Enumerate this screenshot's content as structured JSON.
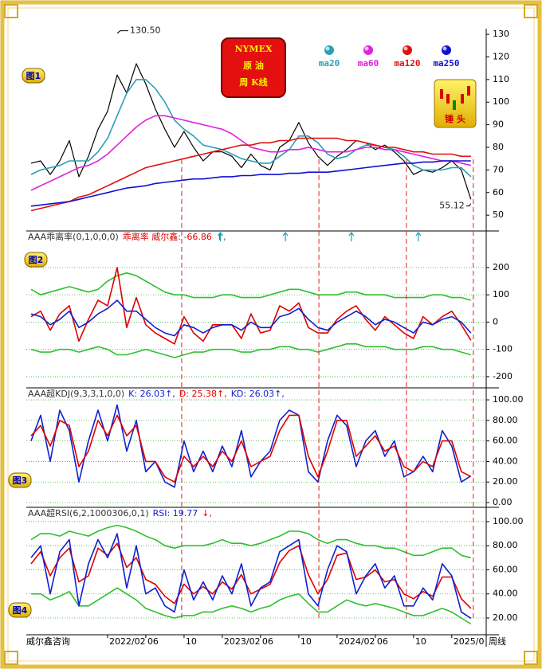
{
  "source": "威尔鑫咨询",
  "x_axis_note": "周线",
  "signal_x": [
    7.75,
    22.1,
    31.25,
    38.25
  ],
  "arrow_x": [
    11.8,
    18.6,
    25.5,
    32.5
  ],
  "chart_data": [
    {
      "type": "line",
      "panel_label": "图1",
      "title_lines": [
        "NYMEX",
        "原 油",
        "周 K线"
      ],
      "icon_label": "锤 头",
      "x": [
        -8,
        -7,
        -6,
        -5,
        -4,
        -3,
        -2,
        -1,
        0,
        1,
        2,
        3,
        4,
        5,
        6,
        7,
        8,
        9,
        10,
        11,
        12,
        13,
        14,
        15,
        16,
        17,
        18,
        19,
        20,
        21,
        22,
        23,
        24,
        25,
        26,
        27,
        28,
        29,
        30,
        31,
        32,
        33,
        34,
        35,
        36,
        37,
        38
      ],
      "xlim": [
        -8.5,
        39.6
      ],
      "ylim": [
        43,
        132.5
      ],
      "yticks": [
        50,
        60,
        70,
        80,
        90,
        100,
        110,
        120,
        130
      ],
      "price": {
        "color": "#000000",
        "values": [
          73,
          74,
          68,
          74,
          83,
          67,
          76,
          88,
          96,
          112,
          104,
          117,
          108,
          97,
          88,
          80,
          87,
          80,
          74,
          78,
          78,
          76,
          71,
          77,
          72,
          70,
          80,
          83,
          91,
          82,
          76,
          72,
          76,
          79,
          83,
          82,
          79,
          81,
          78,
          74,
          68,
          70,
          69,
          71,
          74,
          70,
          57
        ]
      },
      "series": [
        {
          "name": "ma20",
          "color": "#2aa0b4",
          "values": [
            68,
            70,
            71,
            72,
            74,
            74,
            74,
            78,
            84,
            94,
            104,
            110,
            110,
            106,
            100,
            92,
            88,
            85,
            81,
            80,
            79,
            77,
            75,
            74,
            73,
            73,
            76,
            79,
            85,
            85,
            82,
            77,
            75,
            76,
            79,
            81,
            81,
            80,
            79,
            76,
            72,
            70,
            70,
            70,
            71,
            71,
            67
          ]
        },
        {
          "name": "ma60",
          "color": "#e020e0",
          "values": [
            61,
            63,
            65,
            67,
            69,
            71,
            72,
            74,
            77,
            81,
            85,
            89,
            92,
            94,
            94,
            93,
            92,
            91,
            90,
            89,
            88,
            86,
            83,
            80,
            79,
            78,
            78,
            79,
            79,
            80,
            79,
            78,
            78,
            78,
            79,
            80,
            80,
            79,
            79,
            78,
            77,
            76,
            75,
            74,
            74,
            73,
            72
          ]
        },
        {
          "name": "ma120",
          "color": "#e01010",
          "values": [
            52,
            53,
            54,
            55,
            56,
            58,
            59,
            61,
            63,
            65,
            67,
            69,
            71,
            72,
            73,
            74,
            75,
            76,
            77,
            78,
            79,
            80,
            81,
            81,
            82,
            82,
            83,
            83,
            84,
            84,
            84,
            84,
            84,
            83,
            83,
            82,
            81,
            80,
            80,
            79,
            78,
            78,
            77,
            77,
            77,
            76,
            76
          ]
        },
        {
          "name": "ma250",
          "color": "#1010d0",
          "values": [
            54,
            54.5,
            55,
            55.5,
            56,
            57,
            58,
            59,
            60,
            61,
            62,
            62.5,
            63,
            64,
            64.5,
            65,
            65.5,
            66,
            66,
            66.5,
            67,
            67,
            67.5,
            67.5,
            68,
            68,
            68,
            68.5,
            68.5,
            69,
            69,
            69,
            69.5,
            70,
            70.5,
            71,
            71.5,
            72,
            72.5,
            73,
            73,
            73.5,
            73.5,
            74,
            74,
            74,
            74
          ]
        }
      ],
      "annotations": [
        {
          "x": 1,
          "value": 130.5,
          "label": "130.50"
        },
        {
          "x": 38,
          "value": 55.12,
          "label": "55.12"
        }
      ]
    },
    {
      "type": "line",
      "panel_label": "图2",
      "header": "AAA乖离率(0,1,0,0,0)",
      "header_items": [
        {
          "text": "乖离率 威尔鑫: -66.86",
          "color": "#e00000"
        },
        {
          "text": "↑,",
          "color": "#0060d0"
        }
      ],
      "x": [
        -8,
        -7,
        -6,
        -5,
        -4,
        -3,
        -2,
        -1,
        0,
        1,
        2,
        3,
        4,
        5,
        6,
        7,
        8,
        9,
        10,
        11,
        12,
        13,
        14,
        15,
        16,
        17,
        18,
        19,
        20,
        21,
        22,
        23,
        24,
        25,
        26,
        27,
        28,
        29,
        30,
        31,
        32,
        33,
        34,
        35,
        36,
        37,
        38
      ],
      "xlim": [
        -8.5,
        39.6
      ],
      "ylim": [
        -241,
        331
      ],
      "yticks": [
        -200,
        -100,
        0,
        100,
        200
      ],
      "grid": true,
      "series": [
        {
          "color": "#30c030",
          "values": [
            120,
            100,
            110,
            120,
            130,
            120,
            110,
            120,
            150,
            170,
            180,
            170,
            150,
            130,
            110,
            100,
            100,
            90,
            90,
            90,
            100,
            100,
            90,
            90,
            90,
            100,
            110,
            120,
            120,
            110,
            100,
            100,
            100,
            110,
            110,
            100,
            100,
            100,
            90,
            90,
            90,
            90,
            100,
            100,
            90,
            90,
            80
          ]
        },
        {
          "color": "#30c030",
          "values": [
            -100,
            -110,
            -110,
            -100,
            -100,
            -110,
            -100,
            -90,
            -100,
            -120,
            -120,
            -110,
            -100,
            -110,
            -120,
            -130,
            -120,
            -110,
            -110,
            -100,
            -100,
            -100,
            -110,
            -110,
            -100,
            -100,
            -90,
            -90,
            -100,
            -100,
            -110,
            -100,
            -90,
            -80,
            -80,
            -90,
            -90,
            -90,
            -100,
            -100,
            -100,
            -90,
            -90,
            -100,
            -100,
            -110,
            -120
          ]
        },
        {
          "color": "#e00000",
          "values": [
            20,
            40,
            -30,
            30,
            60,
            -70,
            10,
            80,
            60,
            200,
            -20,
            90,
            -10,
            -40,
            -60,
            -80,
            20,
            -40,
            -70,
            -10,
            -10,
            -10,
            -60,
            30,
            -40,
            -30,
            60,
            40,
            70,
            -20,
            -40,
            -40,
            10,
            40,
            60,
            10,
            -30,
            20,
            -10,
            -40,
            -60,
            20,
            -10,
            20,
            40,
            -10,
            -66.86
          ]
        },
        {
          "color": "#1020d0",
          "values": [
            30,
            20,
            -10,
            10,
            40,
            -20,
            0,
            30,
            50,
            80,
            40,
            40,
            10,
            -20,
            -40,
            -50,
            -10,
            -20,
            -40,
            -20,
            -10,
            -10,
            -30,
            0,
            -20,
            -20,
            20,
            30,
            50,
            10,
            -20,
            -30,
            0,
            20,
            40,
            20,
            -10,
            10,
            0,
            -20,
            -40,
            0,
            -10,
            10,
            20,
            0,
            -40
          ]
        }
      ]
    },
    {
      "type": "line",
      "panel_label": "图3",
      "header": "AAA超KDJ(9,3,3,1,0,0)",
      "header_items": [
        {
          "text": "K: 26.03↑,",
          "color": "#1020d0"
        },
        {
          "text": "D: 25.38↑,",
          "color": "#e00000"
        },
        {
          "text": "KD: 26.03↑,",
          "color": "#1020d0"
        }
      ],
      "x": [
        -8,
        -7,
        -6,
        -5,
        -4,
        -3,
        -2,
        -1,
        0,
        1,
        2,
        3,
        4,
        5,
        6,
        7,
        8,
        9,
        10,
        11,
        12,
        13,
        14,
        15,
        16,
        17,
        18,
        19,
        20,
        21,
        22,
        23,
        24,
        25,
        26,
        27,
        28,
        29,
        30,
        31,
        32,
        33,
        34,
        35,
        36,
        37,
        38
      ],
      "xlim": [
        -8.5,
        39.6
      ],
      "ylim": [
        -4.65,
        110.9
      ],
      "grid": true,
      "yticks": [
        {
          "value": 0,
          "label": "0.00"
        },
        {
          "value": 20,
          "label": "20.00"
        },
        {
          "value": 40,
          "label": "40.00"
        },
        {
          "value": 60,
          "label": "60.00"
        },
        {
          "value": 80,
          "label": "80.00"
        },
        {
          "value": 100,
          "label": "100.00"
        }
      ],
      "series": [
        {
          "color": "#1020d0",
          "values": [
            60,
            85,
            40,
            90,
            70,
            20,
            60,
            90,
            60,
            95,
            50,
            80,
            30,
            40,
            20,
            15,
            60,
            30,
            50,
            30,
            55,
            35,
            70,
            25,
            40,
            50,
            80,
            90,
            85,
            30,
            20,
            60,
            85,
            75,
            35,
            60,
            70,
            45,
            60,
            25,
            30,
            45,
            30,
            70,
            55,
            20,
            26.03
          ]
        },
        {
          "color": "#e00000",
          "values": [
            65,
            75,
            55,
            80,
            75,
            35,
            50,
            80,
            65,
            85,
            65,
            75,
            40,
            40,
            25,
            20,
            45,
            35,
            45,
            35,
            50,
            40,
            60,
            35,
            40,
            45,
            70,
            85,
            85,
            45,
            25,
            50,
            80,
            80,
            45,
            55,
            65,
            50,
            55,
            35,
            30,
            40,
            35,
            60,
            60,
            30,
            25.38
          ]
        }
      ]
    },
    {
      "type": "line",
      "panel_label": "图4",
      "header": "AAA超RSI(6,2,1000306,0,1)",
      "header_items": [
        {
          "text": "RSI: 19.77",
          "color": "#1020d0"
        },
        {
          "text": "↓,",
          "color": "#e00000"
        }
      ],
      "x": [
        -8,
        -7,
        -6,
        -5,
        -4,
        -3,
        -2,
        -1,
        0,
        1,
        2,
        3,
        4,
        5,
        6,
        7,
        8,
        9,
        10,
        11,
        12,
        13,
        14,
        15,
        16,
        17,
        18,
        19,
        20,
        21,
        22,
        23,
        24,
        25,
        26,
        27,
        28,
        29,
        30,
        31,
        32,
        33,
        34,
        35,
        36,
        37,
        38
      ],
      "xlim": [
        -8.5,
        39.6
      ],
      "ylim": [
        6.1,
        111.2
      ],
      "grid": true,
      "yticks": [
        {
          "value": 20,
          "label": "20.00"
        },
        {
          "value": 40,
          "label": "40.00"
        },
        {
          "value": 60,
          "label": "60.00"
        },
        {
          "value": 80,
          "label": "80.00"
        },
        {
          "value": 100,
          "label": "100.00"
        }
      ],
      "xticks": [
        {
          "value": 0,
          "label": "2022/02"
        },
        {
          "value": 4,
          "label": "06"
        },
        {
          "value": 8,
          "label": "10"
        },
        {
          "value": 12,
          "label": "2023/02"
        },
        {
          "value": 16,
          "label": "06"
        },
        {
          "value": 20,
          "label": "10"
        },
        {
          "value": 24,
          "label": "2024/02"
        },
        {
          "value": 28,
          "label": "06"
        },
        {
          "value": 32,
          "label": "10"
        },
        {
          "value": 36,
          "label": "2025/0"
        }
      ],
      "series": [
        {
          "color": "#30c030",
          "values": [
            85,
            90,
            90,
            88,
            92,
            90,
            88,
            92,
            95,
            97,
            95,
            92,
            88,
            85,
            80,
            78,
            80,
            80,
            80,
            82,
            85,
            82,
            82,
            80,
            82,
            85,
            88,
            92,
            92,
            90,
            85,
            82,
            85,
            85,
            82,
            80,
            80,
            78,
            78,
            75,
            72,
            72,
            75,
            78,
            78,
            72,
            70
          ]
        },
        {
          "color": "#30c030",
          "values": [
            40,
            40,
            35,
            38,
            42,
            30,
            30,
            35,
            40,
            45,
            40,
            35,
            28,
            25,
            22,
            20,
            22,
            22,
            25,
            25,
            28,
            30,
            28,
            25,
            28,
            30,
            35,
            38,
            40,
            32,
            25,
            25,
            30,
            35,
            32,
            30,
            32,
            30,
            28,
            25,
            22,
            22,
            25,
            28,
            25,
            20,
            15
          ]
        },
        {
          "color": "#e00000",
          "values": [
            65,
            75,
            55,
            70,
            78,
            50,
            55,
            78,
            72,
            82,
            62,
            70,
            52,
            48,
            38,
            32,
            48,
            40,
            46,
            40,
            50,
            44,
            56,
            40,
            44,
            48,
            66,
            76,
            80,
            56,
            40,
            52,
            72,
            74,
            52,
            54,
            60,
            50,
            52,
            40,
            36,
            42,
            38,
            54,
            54,
            36,
            28
          ]
        },
        {
          "color": "#1020d0",
          "values": [
            70,
            80,
            40,
            75,
            85,
            30,
            65,
            85,
            70,
            90,
            45,
            80,
            40,
            45,
            30,
            25,
            60,
            35,
            50,
            35,
            55,
            40,
            65,
            30,
            45,
            50,
            75,
            80,
            85,
            40,
            30,
            60,
            80,
            75,
            40,
            55,
            65,
            45,
            55,
            30,
            30,
            45,
            35,
            65,
            55,
            25,
            19.77
          ]
        }
      ]
    }
  ]
}
